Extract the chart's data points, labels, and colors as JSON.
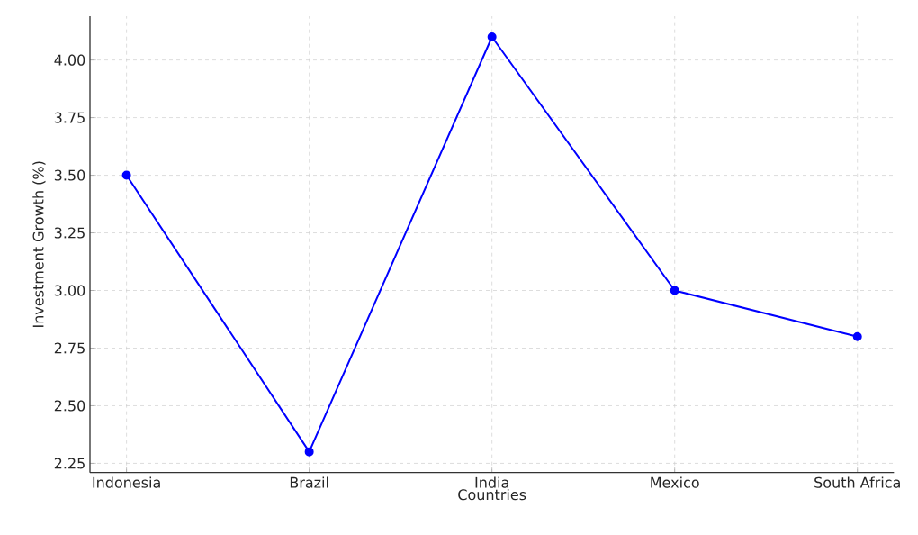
{
  "chart_data": {
    "type": "line",
    "xlabel": "Countries",
    "ylabel": "Investment Growth (%)",
    "categories": [
      "Indonesia",
      "Brazil",
      "India",
      "Mexico",
      "South Africa"
    ],
    "series": [
      {
        "color": "#0000ff",
        "values": [
          3.5,
          2.3,
          4.1,
          3.0,
          2.8
        ]
      }
    ],
    "ylim": [
      2.21,
      4.19
    ],
    "yticks": [
      2.25,
      {
        "value": 2.5,
        "label": "2.50"
      },
      2.75,
      {
        "value": 3.0,
        "label": "3.00"
      },
      3.25,
      {
        "value": 3.5,
        "label": "3.50"
      },
      3.75,
      {
        "value": 4.0,
        "label": "4.00"
      }
    ],
    "grid": true,
    "marker": "circle",
    "line_style": "solid"
  }
}
